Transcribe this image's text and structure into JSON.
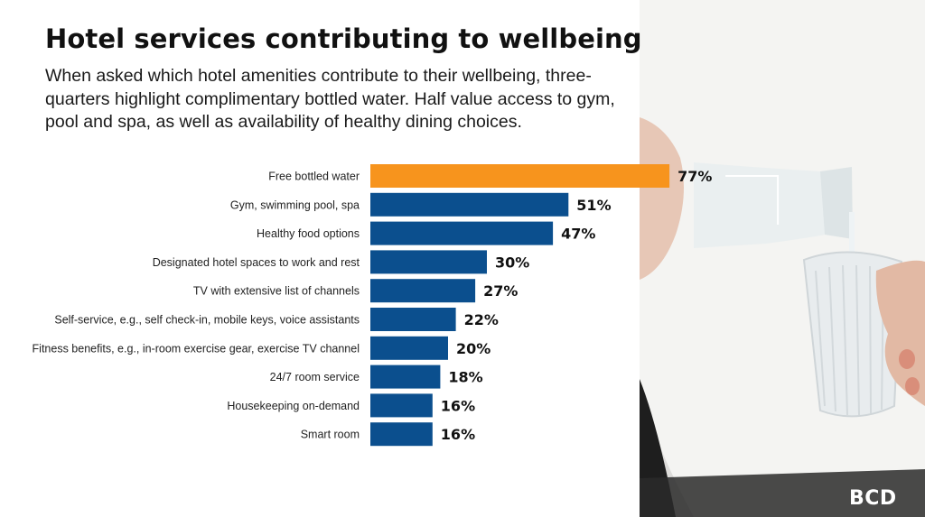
{
  "header": {
    "title": "Hotel services contributing to wellbeing",
    "subtitle": "When asked which hotel amenities contribute to their wellbeing, three-quarters highlight complimentary bottled water. Half value access to gym, pool and spa, as well as availability of healthy dining choices."
  },
  "logo": {
    "text": "BCD"
  },
  "chart_data": {
    "type": "bar",
    "orientation": "horizontal",
    "title": "",
    "xlabel": "",
    "ylabel": "",
    "grid": false,
    "legend": "none",
    "xlim": [
      0,
      100
    ],
    "categories": [
      "Free bottled water",
      "Gym, swimming pool, spa",
      "Healthy food options",
      "Designated hotel spaces to work and rest",
      "TV with extensive list of channels",
      "Self-service, e.g., self check-in, mobile keys, voice assistants",
      "Fitness benefits, e.g., in-room exercise gear, exercise TV channel",
      "24/7 room service",
      "Housekeeping on-demand",
      "Smart room"
    ],
    "values": [
      77,
      51,
      47,
      30,
      27,
      22,
      20,
      18,
      16,
      16
    ],
    "value_labels": [
      "77%",
      "51%",
      "47%",
      "30%",
      "27%",
      "22%",
      "20%",
      "18%",
      "16%",
      "16%"
    ],
    "colors": {
      "highlight": "#F7941D",
      "default": "#0B4F8E"
    },
    "highlight_index": 0
  }
}
